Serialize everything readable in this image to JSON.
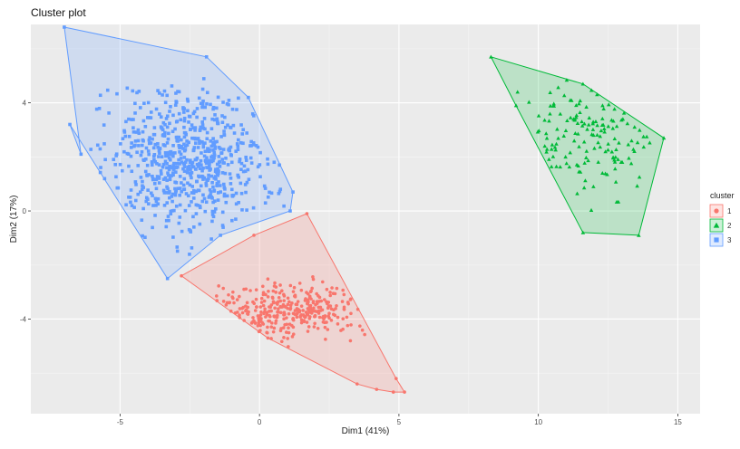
{
  "chart_data": {
    "type": "scatter",
    "title": "Cluster plot",
    "xlabel": "Dim1 (41%)",
    "ylabel": "Dim2 (17%)",
    "xlim": [
      -8.2,
      15.8
    ],
    "ylim": [
      -7.5,
      6.9
    ],
    "x_ticks": [
      -5,
      0,
      5,
      10,
      15
    ],
    "y_ticks": [
      -4,
      0,
      4
    ],
    "x_tick_labels": [
      "-5",
      "0",
      "5",
      "10",
      "15"
    ],
    "y_tick_labels": [
      "-4",
      "0",
      "4"
    ],
    "grid": true,
    "background": "#ebebeb",
    "legend": {
      "title": "cluster",
      "position": "right"
    },
    "series": [
      {
        "name": "1",
        "color": "#f8766d",
        "marker": "circle",
        "hull": [
          [
            -2.8,
            -2.4
          ],
          [
            -0.2,
            -0.9
          ],
          [
            1.7,
            -0.1
          ],
          [
            4.9,
            -6.2
          ],
          [
            5.2,
            -6.7
          ],
          [
            4.8,
            -6.7
          ],
          [
            4.2,
            -6.6
          ],
          [
            3.5,
            -6.4
          ],
          [
            0.3,
            -4.7
          ]
        ],
        "center": [
          1.1,
          -3.7
        ],
        "spread": [
          1.5,
          0.5
        ],
        "n": 330,
        "seed": 7
      },
      {
        "name": "2",
        "color": "#00ba38",
        "marker": "triangle",
        "hull": [
          [
            8.3,
            5.7
          ],
          [
            11.6,
            4.7
          ],
          [
            14.5,
            2.7
          ],
          [
            13.6,
            -0.9
          ],
          [
            11.6,
            -0.8
          ],
          [
            9.2,
            3.9
          ]
        ],
        "center": [
          11.8,
          2.8
        ],
        "spread": [
          1.2,
          1.1
        ],
        "n": 150,
        "seed": 23
      },
      {
        "name": "3",
        "color": "#619cff",
        "marker": "square",
        "hull": [
          [
            -7.0,
            6.8
          ],
          [
            -1.9,
            5.7
          ],
          [
            -0.4,
            4.2
          ],
          [
            1.2,
            0.7
          ],
          [
            1.1,
            0.0
          ],
          [
            -1.4,
            -0.9
          ],
          [
            -3.3,
            -2.5
          ],
          [
            -6.8,
            3.2
          ],
          [
            -6.4,
            2.1
          ]
        ],
        "center": [
          -2.6,
          1.9
        ],
        "spread": [
          1.4,
          1.3
        ],
        "n": 700,
        "seed": 101
      }
    ]
  }
}
